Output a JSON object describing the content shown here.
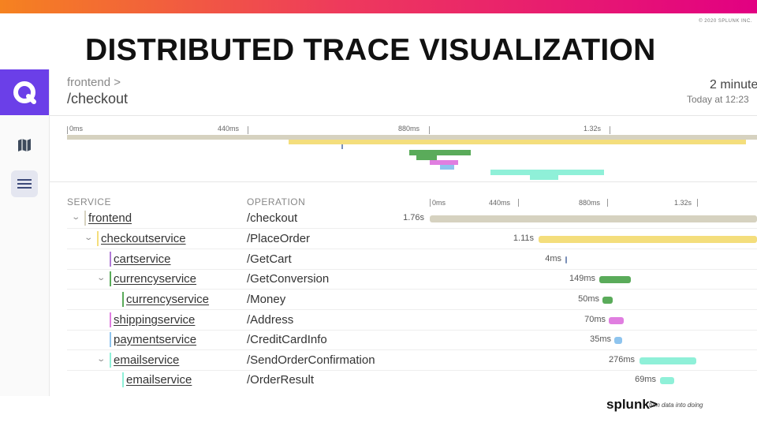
{
  "copyright": "© 2020 SPLUNK INC.",
  "slide_title": "DISTRIBUTED TRACE VISUALIZATION",
  "nav": {
    "logo_icon": "app-logo-icon",
    "items": [
      {
        "icon": "map-icon"
      },
      {
        "icon": "list-icon"
      }
    ]
  },
  "trace": {
    "breadcrumb": "frontend >",
    "operation": "/checkout",
    "time_ago": "2 minute",
    "timestamp": "Today at 12:23"
  },
  "overview_ticks": [
    "0ms",
    "440ms",
    "880ms",
    "1.32s"
  ],
  "table": {
    "headers": {
      "service": "SERVICE",
      "operation": "OPERATION"
    },
    "ticks": [
      "0ms",
      "440ms",
      "880ms",
      "1.32s"
    ]
  },
  "colors": {
    "frontend": "#d6d2c0",
    "checkoutservice": "#f4de7c",
    "cartservice": "#b07ad6",
    "currencyservice": "#5aab5a",
    "shippingservice": "#e07ee0",
    "paymentservice": "#8ec4ee",
    "emailservice": "#8ff0d8"
  },
  "spans": [
    {
      "service": "frontend",
      "operation": "/checkout",
      "duration": "1.76s",
      "depth": 0,
      "collapsible": true
    },
    {
      "service": "checkoutservice",
      "operation": "/PlaceOrder",
      "duration": "1.11s",
      "depth": 1,
      "collapsible": true
    },
    {
      "service": "cartservice",
      "operation": "/GetCart",
      "duration": "4ms",
      "depth": 2,
      "collapsible": false
    },
    {
      "service": "currencyservice",
      "operation": "/GetConversion",
      "duration": "149ms",
      "depth": 2,
      "collapsible": true
    },
    {
      "service": "currencyservice",
      "operation": "/Money",
      "duration": "50ms",
      "depth": 3,
      "collapsible": false
    },
    {
      "service": "shippingservice",
      "operation": "/Address",
      "duration": "70ms",
      "depth": 2,
      "collapsible": false
    },
    {
      "service": "paymentservice",
      "operation": "/CreditCardInfo",
      "duration": "35ms",
      "depth": 2,
      "collapsible": false
    },
    {
      "service": "emailservice",
      "operation": "/SendOrderConfirmation",
      "duration": "276ms",
      "depth": 2,
      "collapsible": true
    },
    {
      "service": "emailservice",
      "operation": "/OrderResult",
      "duration": "69ms",
      "depth": 3,
      "collapsible": false
    }
  ],
  "brand": {
    "name": "splunk>",
    "tagline": "turn data into doing"
  }
}
